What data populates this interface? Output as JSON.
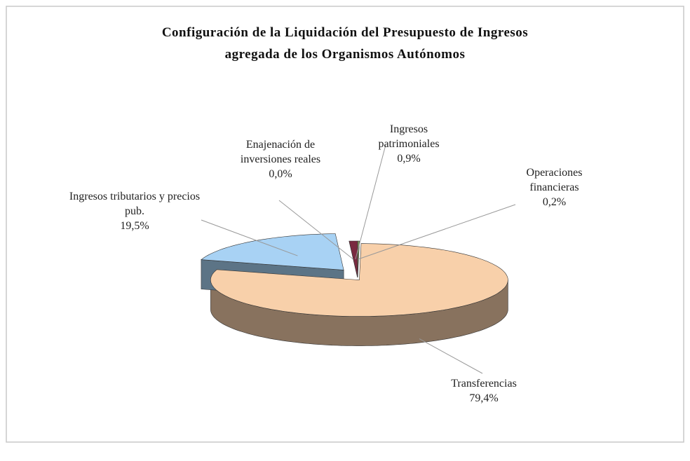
{
  "chart_data": {
    "type": "pie3d",
    "title": [
      "Configuración de la Liquidación del Presupuesto de Ingresos",
      "agregada de los Organismos Autónomos"
    ],
    "categories": [
      "Operaciones financieras",
      "Transferencias",
      "Ingresos tributarios y precios pub.",
      "Enajenación de inversiones reales",
      "Ingresos patrimoniales"
    ],
    "values": [
      0.2,
      79.4,
      19.5,
      0.0,
      0.9
    ],
    "value_labels": [
      "0,2%",
      "79,4%",
      "19,5%",
      "0,0%",
      "0,9%"
    ],
    "colors": [
      "#7f9c5e",
      "#f8d0aa",
      "#a8d2f4",
      "#c8c0d8",
      "#7a2a40"
    ],
    "exploded": [
      false,
      false,
      true,
      false,
      false
    ]
  }
}
